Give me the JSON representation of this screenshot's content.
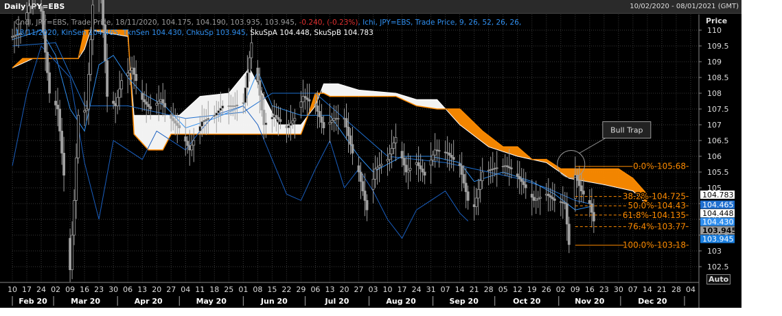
{
  "header": {
    "title": "Daily JPY=EBS",
    "date_range": "10/02/2020 - 08/01/2021 (GMT)"
  },
  "legend": {
    "line1": [
      {
        "text": "Cndl, JPY=EBS, Trade Price,  18/11/2020, 104.175, 104.190, 103.935, 103.945, ",
        "color": "gray"
      },
      {
        "text": "-0.240, (-0.23%)",
        "color": "red"
      },
      {
        "text": ", Ichi, JPY=EBS, Trade Price,  9, 26, 52, 26, 26,",
        "color": "blue"
      }
    ],
    "line2": [
      {
        "text": "18/11/2020, KinSen 104.465, TknSen 104.430, ChkuSp 103.945, ",
        "color": "blue"
      },
      {
        "text": "SkuSpA 104.448, SkuSpB 104.783",
        "color": "white"
      }
    ]
  },
  "axis": {
    "price_label": "Price",
    "auto_label": "Auto"
  },
  "colors": {
    "background": "#000000",
    "grid": "#3a3a3a",
    "candle": "#a0a0a0",
    "kijun": "#1e6fd0",
    "tenkan": "#2f8ff0",
    "chikou": "#1a5fc0",
    "senkou_a": "#ffffff",
    "senkou_b": "#ff8c00",
    "cloud_bull": "#ffffff",
    "cloud_bear": "#ff8c00",
    "fibonacci": "#ff8c00"
  },
  "chart_data": {
    "type": "candlestick",
    "instrument": "JPY=EBS",
    "ylim": [
      102.0,
      110.5
    ],
    "y_ticks": [
      102.5,
      103,
      103.5,
      104,
      104.5,
      105,
      105.5,
      106,
      106.5,
      107,
      107.5,
      108,
      108.5,
      109,
      109.5,
      110
    ],
    "y_tick_labels": [
      "102.5",
      "103",
      "103.5",
      "104",
      "104.5",
      "105",
      "105.5",
      "106",
      "106.5",
      "107",
      "107.5",
      "108",
      "108.5",
      "109",
      "109.5",
      "110"
    ],
    "x_start": "2020-02-10",
    "x_end": "2021-01-08",
    "x_ticks": [
      {
        "date": "2020-02-10",
        "label": "10"
      },
      {
        "date": "2020-02-17",
        "label": "17"
      },
      {
        "date": "2020-02-24",
        "label": "24"
      },
      {
        "date": "2020-03-02",
        "label": "02"
      },
      {
        "date": "2020-03-09",
        "label": "09"
      },
      {
        "date": "2020-03-16",
        "label": "16"
      },
      {
        "date": "2020-03-23",
        "label": "23"
      },
      {
        "date": "2020-03-30",
        "label": "30"
      },
      {
        "date": "2020-04-06",
        "label": "06"
      },
      {
        "date": "2020-04-13",
        "label": "13"
      },
      {
        "date": "2020-04-20",
        "label": "20"
      },
      {
        "date": "2020-04-27",
        "label": "27"
      },
      {
        "date": "2020-05-04",
        "label": "04"
      },
      {
        "date": "2020-05-11",
        "label": "11"
      },
      {
        "date": "2020-05-18",
        "label": "18"
      },
      {
        "date": "2020-05-25",
        "label": "25"
      },
      {
        "date": "2020-06-01",
        "label": "01"
      },
      {
        "date": "2020-06-08",
        "label": "08"
      },
      {
        "date": "2020-06-15",
        "label": "15"
      },
      {
        "date": "2020-06-22",
        "label": "22"
      },
      {
        "date": "2020-06-29",
        "label": "29"
      },
      {
        "date": "2020-07-06",
        "label": "06"
      },
      {
        "date": "2020-07-13",
        "label": "13"
      },
      {
        "date": "2020-07-20",
        "label": "20"
      },
      {
        "date": "2020-07-27",
        "label": "27"
      },
      {
        "date": "2020-08-03",
        "label": "03"
      },
      {
        "date": "2020-08-10",
        "label": "10"
      },
      {
        "date": "2020-08-17",
        "label": "17"
      },
      {
        "date": "2020-08-24",
        "label": "24"
      },
      {
        "date": "2020-08-31",
        "label": "31"
      },
      {
        "date": "2020-09-07",
        "label": "07"
      },
      {
        "date": "2020-09-14",
        "label": "14"
      },
      {
        "date": "2020-09-21",
        "label": "21"
      },
      {
        "date": "2020-09-28",
        "label": "28"
      },
      {
        "date": "2020-10-05",
        "label": "05"
      },
      {
        "date": "2020-10-12",
        "label": "12"
      },
      {
        "date": "2020-10-19",
        "label": "19"
      },
      {
        "date": "2020-10-26",
        "label": "26"
      },
      {
        "date": "2020-11-02",
        "label": "02"
      },
      {
        "date": "2020-11-09",
        "label": "09"
      },
      {
        "date": "2020-11-16",
        "label": "16"
      },
      {
        "date": "2020-11-23",
        "label": "23"
      },
      {
        "date": "2020-11-30",
        "label": "30"
      },
      {
        "date": "2020-12-07",
        "label": "07"
      },
      {
        "date": "2020-12-14",
        "label": "14"
      },
      {
        "date": "2020-12-21",
        "label": "21"
      },
      {
        "date": "2020-12-28",
        "label": "28"
      },
      {
        "date": "2021-01-04",
        "label": "04"
      }
    ],
    "months": [
      {
        "label": "Feb 20",
        "start": "2020-02-10",
        "end": "2020-03-01"
      },
      {
        "label": "Mar 20",
        "start": "2020-03-01",
        "end": "2020-04-01"
      },
      {
        "label": "Apr 20",
        "start": "2020-04-01",
        "end": "2020-05-01"
      },
      {
        "label": "May 20",
        "start": "2020-05-01",
        "end": "2020-06-01"
      },
      {
        "label": "Jun 20",
        "start": "2020-06-01",
        "end": "2020-07-01"
      },
      {
        "label": "Jul 20",
        "start": "2020-07-01",
        "end": "2020-08-01"
      },
      {
        "label": "Aug 20",
        "start": "2020-08-01",
        "end": "2020-09-01"
      },
      {
        "label": "Sep 20",
        "start": "2020-09-01",
        "end": "2020-10-01"
      },
      {
        "label": "Oct 20",
        "start": "2020-10-01",
        "end": "2020-11-01"
      },
      {
        "label": "Nov 20",
        "start": "2020-11-01",
        "end": "2020-12-01"
      },
      {
        "label": "Dec 20",
        "start": "2020-12-01",
        "end": "2021-01-01"
      }
    ],
    "price_path": [
      [
        "2020-02-10",
        109.8
      ],
      [
        "2020-02-14",
        109.9
      ],
      [
        "2020-02-20",
        111.2
      ],
      [
        "2020-02-24",
        110.6
      ],
      [
        "2020-02-28",
        108.0
      ],
      [
        "2020-03-03",
        107.5
      ],
      [
        "2020-03-06",
        105.4
      ],
      [
        "2020-03-09",
        102.4
      ],
      [
        "2020-03-11",
        104.6
      ],
      [
        "2020-03-13",
        107.3
      ],
      [
        "2020-03-17",
        107.5
      ],
      [
        "2020-03-20",
        110.8
      ],
      [
        "2020-03-24",
        111.3
      ],
      [
        "2020-03-27",
        107.9
      ],
      [
        "2020-03-31",
        107.6
      ],
      [
        "2020-04-03",
        108.4
      ],
      [
        "2020-04-08",
        108.8
      ],
      [
        "2020-04-13",
        107.8
      ],
      [
        "2020-04-17",
        107.5
      ],
      [
        "2020-04-22",
        107.8
      ],
      [
        "2020-04-27",
        107.2
      ],
      [
        "2020-05-01",
        106.9
      ],
      [
        "2020-05-06",
        106.2
      ],
      [
        "2020-05-12",
        107.1
      ],
      [
        "2020-05-18",
        107.3
      ],
      [
        "2020-05-22",
        107.6
      ],
      [
        "2020-05-28",
        107.6
      ],
      [
        "2020-06-01",
        107.7
      ],
      [
        "2020-06-05",
        109.6
      ],
      [
        "2020-06-08",
        108.4
      ],
      [
        "2020-06-11",
        107.0
      ],
      [
        "2020-06-16",
        107.3
      ],
      [
        "2020-06-22",
        106.9
      ],
      [
        "2020-06-26",
        107.2
      ],
      [
        "2020-06-30",
        107.9
      ],
      [
        "2020-07-06",
        107.6
      ],
      [
        "2020-07-10",
        106.9
      ],
      [
        "2020-07-15",
        107.2
      ],
      [
        "2020-07-20",
        107.2
      ],
      [
        "2020-07-24",
        106.1
      ],
      [
        "2020-07-27",
        105.5
      ],
      [
        "2020-07-31",
        104.3
      ],
      [
        "2020-08-04",
        105.6
      ],
      [
        "2020-08-10",
        105.9
      ],
      [
        "2020-08-14",
        106.6
      ],
      [
        "2020-08-19",
        105.5
      ],
      [
        "2020-08-24",
        105.8
      ],
      [
        "2020-08-28",
        105.4
      ],
      [
        "2020-09-02",
        106.2
      ],
      [
        "2020-09-08",
        106.1
      ],
      [
        "2020-09-14",
        105.7
      ],
      [
        "2020-09-18",
        104.6
      ],
      [
        "2020-09-21",
        104.4
      ],
      [
        "2020-09-25",
        105.5
      ],
      [
        "2020-09-30",
        105.6
      ],
      [
        "2020-10-06",
        105.7
      ],
      [
        "2020-10-09",
        105.6
      ],
      [
        "2020-10-14",
        105.2
      ],
      [
        "2020-10-20",
        104.6
      ],
      [
        "2020-10-26",
        104.8
      ],
      [
        "2020-10-30",
        104.6
      ],
      [
        "2020-11-04",
        104.5
      ],
      [
        "2020-11-06",
        103.2
      ],
      [
        "2020-11-09",
        105.4
      ],
      [
        "2020-11-12",
        104.9
      ],
      [
        "2020-11-16",
        104.5
      ],
      [
        "2020-11-18",
        103.945
      ]
    ],
    "tenkan_sen": [
      [
        "2020-02-10",
        109.7
      ],
      [
        "2020-02-24",
        110.0
      ],
      [
        "2020-03-02",
        109.2
      ],
      [
        "2020-03-09",
        107.5
      ],
      [
        "2020-03-16",
        106.8
      ],
      [
        "2020-03-23",
        108.9
      ],
      [
        "2020-03-30",
        109.2
      ],
      [
        "2020-04-06",
        108.5
      ],
      [
        "2020-04-13",
        108.0
      ],
      [
        "2020-04-24",
        107.6
      ],
      [
        "2020-05-04",
        106.9
      ],
      [
        "2020-05-18",
        107.2
      ],
      [
        "2020-06-01",
        107.6
      ],
      [
        "2020-06-08",
        108.7
      ],
      [
        "2020-06-15",
        107.6
      ],
      [
        "2020-06-29",
        107.3
      ],
      [
        "2020-07-13",
        107.3
      ],
      [
        "2020-07-27",
        106.0
      ],
      [
        "2020-08-03",
        105.5
      ],
      [
        "2020-08-17",
        106.0
      ],
      [
        "2020-08-31",
        106.0
      ],
      [
        "2020-09-14",
        105.8
      ],
      [
        "2020-09-21",
        105.2
      ],
      [
        "2020-10-05",
        105.5
      ],
      [
        "2020-10-19",
        105.2
      ],
      [
        "2020-10-30",
        104.8
      ],
      [
        "2020-11-09",
        104.3
      ],
      [
        "2020-11-18",
        104.43
      ]
    ],
    "kijun_sen": [
      [
        "2020-02-10",
        109.5
      ],
      [
        "2020-03-02",
        109.6
      ],
      [
        "2020-03-16",
        107.6
      ],
      [
        "2020-04-06",
        107.6
      ],
      [
        "2020-05-04",
        107.2
      ],
      [
        "2020-06-01",
        107.4
      ],
      [
        "2020-06-15",
        108.0
      ],
      [
        "2020-07-06",
        108.0
      ],
      [
        "2020-07-27",
        106.8
      ],
      [
        "2020-08-10",
        106.0
      ],
      [
        "2020-09-07",
        105.8
      ],
      [
        "2020-09-21",
        105.6
      ],
      [
        "2020-10-12",
        105.3
      ],
      [
        "2020-10-26",
        105.0
      ],
      [
        "2020-11-09",
        104.6
      ],
      [
        "2020-11-18",
        104.465
      ]
    ],
    "chikou_span": [
      [
        "2020-02-10",
        105.7
      ],
      [
        "2020-02-17",
        108.0
      ],
      [
        "2020-02-24",
        109.5
      ],
      [
        "2020-03-09",
        108.5
      ],
      [
        "2020-03-16",
        105.8
      ],
      [
        "2020-03-23",
        104.0
      ],
      [
        "2020-03-30",
        106.5
      ],
      [
        "2020-04-13",
        105.9
      ],
      [
        "2020-04-20",
        106.8
      ],
      [
        "2020-05-04",
        106.2
      ],
      [
        "2020-05-11",
        106.8
      ],
      [
        "2020-05-18",
        107.3
      ],
      [
        "2020-06-01",
        107.6
      ],
      [
        "2020-06-08",
        107.0
      ],
      [
        "2020-06-22",
        104.8
      ],
      [
        "2020-06-29",
        104.6
      ],
      [
        "2020-07-06",
        105.6
      ],
      [
        "2020-07-13",
        106.5
      ],
      [
        "2020-07-20",
        105.0
      ],
      [
        "2020-07-27",
        105.6
      ],
      [
        "2020-08-03",
        104.9
      ],
      [
        "2020-08-10",
        104.0
      ],
      [
        "2020-08-17",
        103.4
      ],
      [
        "2020-08-24",
        104.3
      ],
      [
        "2020-08-31",
        104.6
      ],
      [
        "2020-09-07",
        104.9
      ],
      [
        "2020-09-14",
        104.2
      ],
      [
        "2020-09-18",
        103.945
      ]
    ],
    "senkou_span_a": [
      [
        "2020-02-10",
        108.8
      ],
      [
        "2020-02-20",
        109.1
      ],
      [
        "2020-03-13",
        109.1
      ],
      [
        "2020-03-16",
        109.4
      ],
      [
        "2020-03-19",
        110.0
      ],
      [
        "2020-04-06",
        109.8
      ],
      [
        "2020-04-09",
        107.3
      ],
      [
        "2020-05-01",
        107.3
      ],
      [
        "2020-05-11",
        107.9
      ],
      [
        "2020-05-25",
        108.0
      ],
      [
        "2020-06-04",
        108.8
      ],
      [
        "2020-06-11",
        107.9
      ],
      [
        "2020-06-18",
        107.0
      ],
      [
        "2020-06-29",
        107.0
      ],
      [
        "2020-07-06",
        107.6
      ],
      [
        "2020-07-10",
        108.3
      ],
      [
        "2020-07-17",
        108.3
      ],
      [
        "2020-07-27",
        108.1
      ],
      [
        "2020-08-14",
        108.0
      ],
      [
        "2020-08-24",
        107.8
      ],
      [
        "2020-09-03",
        107.8
      ],
      [
        "2020-09-14",
        107.0
      ],
      [
        "2020-09-28",
        106.3
      ],
      [
        "2020-10-12",
        106.0
      ],
      [
        "2020-10-26",
        105.8
      ],
      [
        "2020-11-06",
        105.3
      ],
      [
        "2020-11-23",
        105.1
      ],
      [
        "2020-12-07",
        104.9
      ],
      [
        "2020-12-14",
        104.448
      ]
    ],
    "senkou_span_b": [
      [
        "2020-02-10",
        108.8
      ],
      [
        "2020-02-15",
        109.1
      ],
      [
        "2020-03-13",
        109.1
      ],
      [
        "2020-03-16",
        110.0
      ],
      [
        "2020-04-06",
        110.0
      ],
      [
        "2020-04-09",
        106.7
      ],
      [
        "2020-04-16",
        106.2
      ],
      [
        "2020-04-23",
        106.2
      ],
      [
        "2020-04-27",
        106.7
      ],
      [
        "2020-05-25",
        106.7
      ],
      [
        "2020-06-01",
        106.7
      ],
      [
        "2020-06-29",
        106.7
      ],
      [
        "2020-07-03",
        107.4
      ],
      [
        "2020-07-06",
        108.0
      ],
      [
        "2020-07-10",
        108.0
      ],
      [
        "2020-07-13",
        107.9
      ],
      [
        "2020-07-27",
        107.9
      ],
      [
        "2020-08-14",
        107.9
      ],
      [
        "2020-08-24",
        107.6
      ],
      [
        "2020-09-03",
        107.5
      ],
      [
        "2020-09-14",
        107.5
      ],
      [
        "2020-09-25",
        106.8
      ],
      [
        "2020-10-05",
        106.3
      ],
      [
        "2020-10-12",
        106.3
      ],
      [
        "2020-10-19",
        105.9
      ],
      [
        "2020-10-26",
        105.9
      ],
      [
        "2020-11-02",
        105.6
      ],
      [
        "2020-11-16",
        105.6
      ],
      [
        "2020-11-30",
        105.6
      ],
      [
        "2020-12-07",
        105.3
      ],
      [
        "2020-12-14",
        104.783
      ]
    ],
    "fibonacci": {
      "start_date": "2020-11-09",
      "end_date": "2021-01-03",
      "levels": [
        {
          "value": 105.68,
          "label": "0.0%",
          "price": "105.68",
          "style": "solid"
        },
        {
          "value": 104.725,
          "label": "38.2%",
          "price": "104.725",
          "style": "dashed"
        },
        {
          "value": 104.43,
          "label": "50.0%",
          "price": "104.43",
          "style": "dashed"
        },
        {
          "value": 104.135,
          "label": "61.8%",
          "price": "104.135",
          "style": "dashed"
        },
        {
          "value": 103.77,
          "label": "76.4%",
          "price": "103.77",
          "style": "dashed"
        },
        {
          "value": 103.18,
          "label": "100.0%",
          "price": "103.18",
          "style": "solid"
        }
      ]
    },
    "annotations": [
      {
        "text": "Bull Trap",
        "date": "2020-11-09",
        "value": 105.75
      }
    ],
    "price_badges": [
      {
        "value": 104.783,
        "text": "104.783",
        "bg": "#ffffff",
        "fg": "#000000"
      },
      {
        "value": 104.465,
        "text": "104.465",
        "bg": "#1e6fd0",
        "fg": "#ffffff"
      },
      {
        "value": 104.448,
        "text": "104.448",
        "bg": "#ffffff",
        "fg": "#000000"
      },
      {
        "value": 104.43,
        "text": "104.430",
        "bg": "#2f8ff0",
        "fg": "#ffffff"
      },
      {
        "value": 103.945,
        "text": "103.945",
        "bg": "#9a9a9a",
        "fg": "#000000"
      },
      {
        "value": 103.945,
        "text": "103.945",
        "bg": "#1a7fe0",
        "fg": "#ffffff"
      }
    ]
  }
}
